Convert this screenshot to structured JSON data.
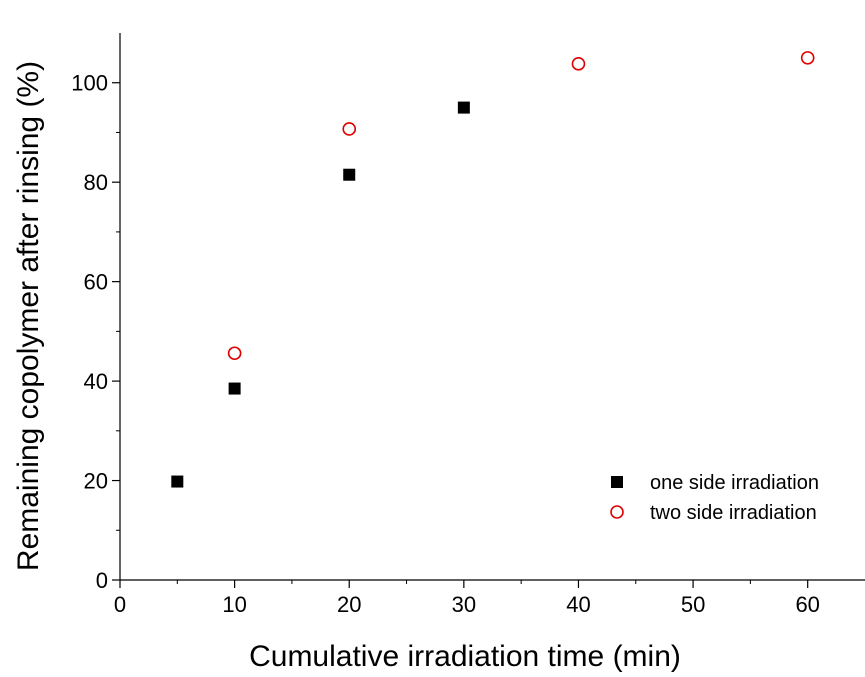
{
  "chart_data": {
    "type": "scatter",
    "title": "",
    "xlabel": "Cumulative irradiation time (min)",
    "ylabel": "Remaining copolymer after rinsing (%)",
    "xlim": [
      0,
      65
    ],
    "ylim": [
      0,
      110
    ],
    "x_ticks": [
      0,
      10,
      20,
      30,
      40,
      50,
      60
    ],
    "y_ticks": [
      0,
      20,
      40,
      60,
      80,
      100
    ],
    "grid": false,
    "legend_position": "bottom-right",
    "series": [
      {
        "name": "one side irradiation",
        "marker": "filled-square",
        "color": "#000000",
        "points": [
          {
            "x": 5,
            "y": 19.8
          },
          {
            "x": 10,
            "y": 38.5
          },
          {
            "x": 20,
            "y": 81.5
          },
          {
            "x": 30,
            "y": 95.0
          }
        ]
      },
      {
        "name": "two side irradiation",
        "marker": "open-circle",
        "color": "#e00000",
        "points": [
          {
            "x": 10,
            "y": 45.6
          },
          {
            "x": 20,
            "y": 90.7
          },
          {
            "x": 40,
            "y": 103.8
          },
          {
            "x": 60,
            "y": 105.0
          }
        ]
      }
    ]
  }
}
